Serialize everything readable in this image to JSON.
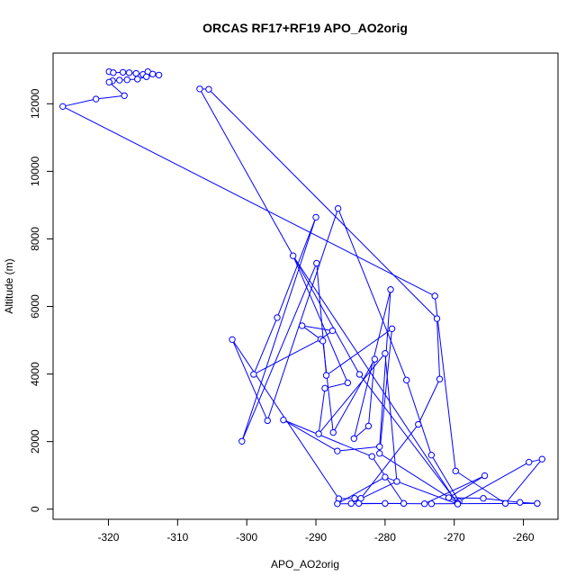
{
  "chart_data": {
    "type": "line",
    "title": "ORCAS RF17+RF19 APO_AO2orig",
    "xlabel": "APO_AO2orig",
    "ylabel": "Altitude (m)",
    "xlim": [
      -328,
      -255
    ],
    "ylim": [
      -300,
      13500
    ],
    "xticks": [
      -320,
      -310,
      -300,
      -290,
      -280,
      -270,
      -260
    ],
    "yticks": [
      0,
      2000,
      4000,
      6000,
      8000,
      10000,
      12000
    ],
    "grid": false,
    "marker": "open-circle",
    "line_color": "#0000ff",
    "series": [
      {
        "points": [
          [
            -319.9,
            12950
          ],
          [
            -319.3,
            12920
          ],
          [
            -317.9,
            12930
          ],
          [
            -317.0,
            12920
          ],
          [
            -316.0,
            12900
          ],
          [
            -315.0,
            12870
          ],
          [
            -314.3,
            12950
          ],
          [
            -313.6,
            12880
          ],
          [
            -312.7,
            12850
          ],
          [
            -314.5,
            12800
          ],
          [
            -315.8,
            12730
          ],
          [
            -317.3,
            12710
          ],
          [
            -318.4,
            12700
          ],
          [
            -319.4,
            12680
          ],
          [
            -319.9,
            12640
          ],
          [
            -317.7,
            12240
          ],
          [
            -321.8,
            12140
          ],
          [
            -326.6,
            11920
          ],
          [
            -272.8,
            6310
          ],
          [
            -269.8,
            1130
          ],
          [
            -262.6,
            170
          ],
          [
            -257.3,
            1480
          ],
          [
            -259.2,
            1390
          ],
          [
            -269.3,
            230
          ],
          [
            -273.3,
            1600
          ],
          [
            -276.9,
            3820
          ],
          [
            -286.8,
            8900
          ],
          [
            -297.0,
            2620
          ],
          [
            -302.1,
            5020
          ],
          [
            -286.7,
            310
          ],
          [
            -283.5,
            320
          ],
          [
            -275.2,
            2510
          ],
          [
            -272.1,
            3850
          ],
          [
            -272.5,
            5640
          ],
          [
            -305.5,
            12430
          ],
          [
            -306.8,
            12440
          ],
          [
            -283.7,
            3990
          ],
          [
            -269.5,
            180
          ],
          [
            -280.8,
            1650
          ],
          [
            -279.0,
            5340
          ],
          [
            -288.5,
            3960
          ],
          [
            -289.9,
            7280
          ],
          [
            -300.7,
            2010
          ],
          [
            -290.0,
            8640
          ],
          [
            -295.6,
            5670
          ],
          [
            -299.0,
            3990
          ],
          [
            -289.3,
            5030
          ],
          [
            -287.6,
            5280
          ],
          [
            -292.0,
            5430
          ],
          [
            -289.0,
            4980
          ],
          [
            -287.5,
            2270
          ],
          [
            -281.5,
            4440
          ],
          [
            -282.4,
            2460
          ],
          [
            -284.5,
            2090
          ],
          [
            -279.2,
            6500
          ],
          [
            -280.8,
            1850
          ],
          [
            -286.9,
            1720
          ],
          [
            -294.7,
            2640
          ],
          [
            -281.9,
            1560
          ],
          [
            -277.3,
            170
          ],
          [
            -286.9,
            160
          ],
          [
            -280.0,
            950
          ],
          [
            -269.5,
            150
          ],
          [
            -293.3,
            7500
          ],
          [
            -285.4,
            3740
          ],
          [
            -288.7,
            3580
          ],
          [
            -289.6,
            2230
          ],
          [
            -280.0,
            4610
          ],
          [
            -278.3,
            820
          ],
          [
            -284.9,
            170
          ],
          [
            -284.4,
            320
          ],
          [
            -283.8,
            170
          ],
          [
            -280.0,
            170
          ],
          [
            -274.3,
            160
          ],
          [
            -265.6,
            990
          ],
          [
            -270.8,
            340
          ],
          [
            -265.8,
            320
          ],
          [
            -260.5,
            200
          ],
          [
            -258.0,
            170
          ],
          [
            -273.3,
            160
          ]
        ]
      }
    ]
  }
}
